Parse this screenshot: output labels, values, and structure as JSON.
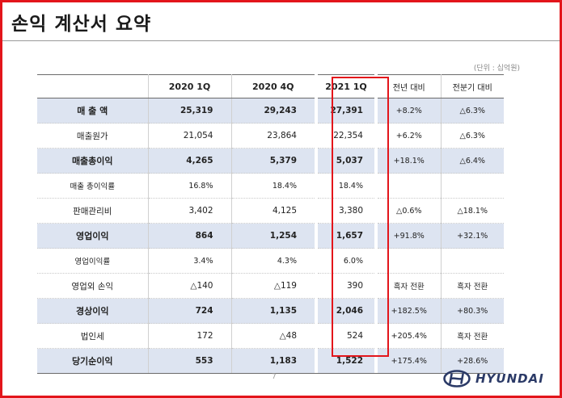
{
  "page": {
    "title": "손익 계산서 요약",
    "unit_note": "(단위 : 십억원)",
    "page_number": "7",
    "brand_text": "HYUNDAI"
  },
  "colors": {
    "frame_border": "#e3151b",
    "highlight_row": "#dde4f1",
    "brand": "#2b3a67"
  },
  "table": {
    "headers": {
      "col1": "2020 1Q",
      "col2": "2020 4Q",
      "col3": "2021 1Q",
      "yoy": "전년 대비",
      "qoq": "전분기 대비"
    },
    "highlighted_column": "2021 1Q",
    "rows": [
      {
        "label": "매 출 액",
        "q1_2020": "25,319",
        "q4_2020": "29,243",
        "q1_2021": "27,391",
        "yoy": "+8.2%",
        "qoq": "△6.3%",
        "highlight": true
      },
      {
        "label": "매출원가",
        "q1_2020": "21,054",
        "q4_2020": "23,864",
        "q1_2021": "22,354",
        "yoy": "+6.2%",
        "qoq": "△6.3%",
        "highlight": false
      },
      {
        "label": "매출총이익",
        "q1_2020": "4,265",
        "q4_2020": "5,379",
        "q1_2021": "5,037",
        "yoy": "+18.1%",
        "qoq": "△6.4%",
        "highlight": true
      },
      {
        "label": "매출 총이익률",
        "q1_2020": "16.8%",
        "q4_2020": "18.4%",
        "q1_2021": "18.4%",
        "yoy": "",
        "qoq": "",
        "highlight": false,
        "small": true
      },
      {
        "label": "판매관리비",
        "q1_2020": "3,402",
        "q4_2020": "4,125",
        "q1_2021": "3,380",
        "yoy": "△0.6%",
        "qoq": "△18.1%",
        "highlight": false
      },
      {
        "label": "영업이익",
        "q1_2020": "864",
        "q4_2020": "1,254",
        "q1_2021": "1,657",
        "yoy": "+91.8%",
        "qoq": "+32.1%",
        "highlight": true
      },
      {
        "label": "영업이익률",
        "q1_2020": "3.4%",
        "q4_2020": "4.3%",
        "q1_2021": "6.0%",
        "yoy": "",
        "qoq": "",
        "highlight": false,
        "small": true
      },
      {
        "label": "영업외 손익",
        "q1_2020": "△140",
        "q4_2020": "△119",
        "q1_2021": "390",
        "yoy": "흑자 전환",
        "qoq": "흑자 전환",
        "highlight": false
      },
      {
        "label": "경상이익",
        "q1_2020": "724",
        "q4_2020": "1,135",
        "q1_2021": "2,046",
        "yoy": "+182.5%",
        "qoq": "+80.3%",
        "highlight": true
      },
      {
        "label": "법인세",
        "q1_2020": "172",
        "q4_2020": "△48",
        "q1_2021": "524",
        "yoy": "+205.4%",
        "qoq": "흑자 전환",
        "highlight": false
      },
      {
        "label": "당기순이익",
        "q1_2020": "553",
        "q4_2020": "1,183",
        "q1_2021": "1,522",
        "yoy": "+175.4%",
        "qoq": "+28.6%",
        "highlight": true
      }
    ]
  }
}
